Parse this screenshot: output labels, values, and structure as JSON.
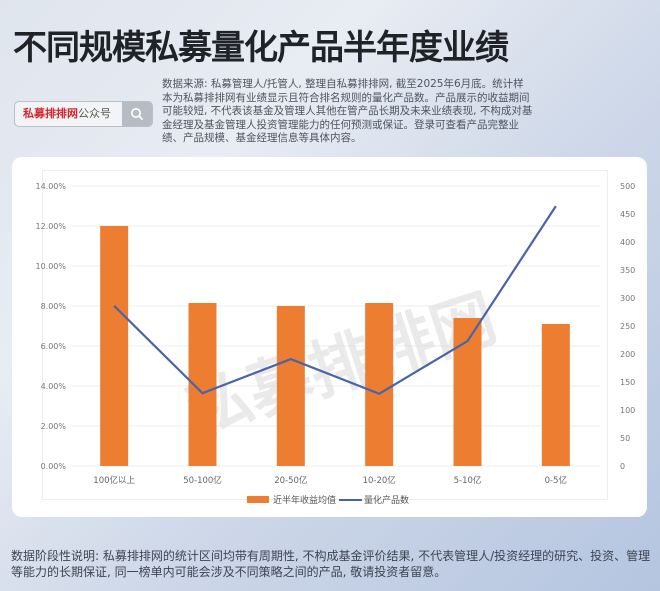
{
  "header": {
    "title": "不同规模私募量化产品半年度业绩",
    "search_badge": {
      "brand": "私募排排网",
      "suffix": "公众号",
      "icon": "search-icon"
    },
    "source_note": "数据来源: 私募管理人/托管人, 整理自私募排排网, 截至2025年6月底。统计样本为私募排排网有业绩显示且符合排名规则的量化产品数。产品展示的收益期间可能较短, 不代表该基金及管理人其他在管产品长期及未来业绩表现, 不构成对基金经理及基金管理人投资管理能力的任何预测或保证。登录可查看产品完整业绩、产品规模、基金经理信息等具体内容。"
  },
  "watermark": "私募排排网",
  "footer": {
    "note": "数据阶段性说明: 私募排排网的统计区间均带有周期性, 不构成基金评价结果, 不代表管理人/投资经理的研究、投资、管理等能力的长期保证, 同一榜单内可能会涉及不同策略之间的产品, 敬请投资者留意。"
  },
  "colors": {
    "bar": "#ed7d31",
    "line": "#4a64a8",
    "grid": "#ececec",
    "axis_text": "#777777"
  },
  "chart_data": {
    "type": "bar+line",
    "title": "",
    "categories": [
      "100亿以上",
      "50-100亿",
      "20-50亿",
      "10-20亿",
      "5-10亿",
      "0-5亿"
    ],
    "series": [
      {
        "name": "近半年收益均值",
        "type": "bar",
        "axis": "left",
        "values": [
          12.0,
          8.15,
          8.0,
          8.15,
          7.4,
          7.1
        ]
      },
      {
        "name": "量化产品数",
        "type": "line",
        "axis": "right",
        "values": [
          286,
          130,
          191,
          129,
          223,
          464
        ]
      }
    ],
    "y_left": {
      "ticks": [
        "0.00%",
        "2.00%",
        "4.00%",
        "6.00%",
        "8.00%",
        "10.00%",
        "12.00%",
        "14.00%"
      ],
      "range": [
        0,
        14
      ]
    },
    "y_right": {
      "ticks": [
        "0",
        "50",
        "100",
        "150",
        "200",
        "250",
        "300",
        "350",
        "400",
        "450",
        "500"
      ],
      "range": [
        0,
        500
      ]
    },
    "legend_position": "bottom",
    "grid": true
  }
}
